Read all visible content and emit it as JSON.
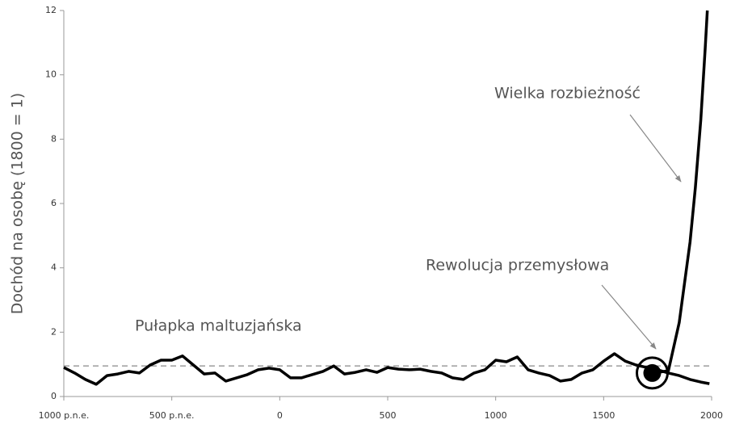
{
  "chart_data": {
    "type": "line",
    "y_label": "Dochód na osobę (1800 = 1)",
    "xlim": [
      -1000,
      2000
    ],
    "xticks": [
      {
        "value": -1000,
        "label": "1000 p.n.e."
      },
      {
        "value": -500,
        "label": "500 p.n.e."
      },
      0,
      500,
      1000,
      1500,
      2000
    ],
    "ylim": [
      0,
      12
    ],
    "yticks": [
      0,
      2,
      4,
      6,
      8,
      10,
      12
    ],
    "reference_line": 0.95,
    "marker": {
      "x": 1725,
      "y": 0.73
    },
    "annotations": [
      "Wielka rozbieżność",
      "Rewolucja przemysłowa",
      "Pułapka maltuzjańska"
    ],
    "series": [
      {
        "color": "#000000",
        "x": [
          -1000,
          -950,
          -900,
          -850,
          -800,
          -750,
          -700,
          -650,
          -600,
          -550,
          -500,
          -450,
          -400,
          -350,
          -300,
          -250,
          -200,
          -150,
          -100,
          -50,
          0,
          50,
          100,
          150,
          200,
          250,
          300,
          350,
          400,
          450,
          500,
          550,
          600,
          650,
          700,
          750,
          800,
          850,
          900,
          950,
          1000,
          1050,
          1100,
          1150,
          1200,
          1250,
          1300,
          1350,
          1400,
          1450,
          1500,
          1550,
          1600,
          1650,
          1700,
          1750,
          1800,
          1850,
          1900,
          1950,
          1990
        ],
        "values": [
          0.9,
          0.73,
          0.53,
          0.38,
          0.65,
          0.7,
          0.78,
          0.73,
          0.98,
          1.13,
          1.13,
          1.26,
          0.98,
          0.7,
          0.73,
          0.48,
          0.58,
          0.68,
          0.83,
          0.88,
          0.83,
          0.58,
          0.58,
          0.68,
          0.78,
          0.95,
          0.7,
          0.75,
          0.83,
          0.75,
          0.9,
          0.85,
          0.83,
          0.85,
          0.78,
          0.73,
          0.58,
          0.53,
          0.73,
          0.83,
          1.13,
          1.08,
          1.23,
          0.83,
          0.73,
          0.65,
          0.48,
          0.53,
          0.73,
          0.83,
          1.1,
          1.33,
          1.1,
          0.98,
          0.9,
          0.83,
          0.73,
          0.65,
          0.53,
          0.45,
          0.4
        ]
      },
      {
        "color": "#000000",
        "x": [
          1750,
          1800,
          1850,
          1900,
          1925,
          1950,
          1970,
          1980
        ],
        "values": [
          0.75,
          0.8,
          2.3,
          4.8,
          6.5,
          8.6,
          10.8,
          12
        ]
      }
    ]
  }
}
